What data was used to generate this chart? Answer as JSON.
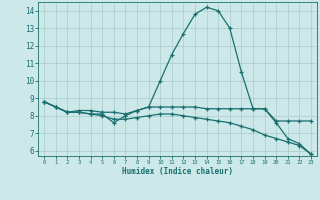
{
  "xlabel": "Humidex (Indice chaleur)",
  "bg_color": "#cce8e8",
  "line_color": "#1a7070",
  "grid_color": "#aacccc",
  "ylim": [
    5.7,
    14.5
  ],
  "xlim": [
    -0.5,
    23.5
  ],
  "yticks": [
    6,
    7,
    8,
    9,
    10,
    11,
    12,
    13,
    14
  ],
  "xticks": [
    0,
    1,
    2,
    3,
    4,
    5,
    6,
    7,
    8,
    9,
    10,
    11,
    12,
    13,
    14,
    15,
    16,
    17,
    18,
    19,
    20,
    21,
    22,
    23
  ],
  "line1_x": [
    0,
    1,
    2,
    3,
    4,
    5,
    6,
    7,
    8,
    9,
    10,
    11,
    12,
    13,
    14,
    15,
    16,
    17,
    18,
    19,
    20,
    21,
    22,
    23
  ],
  "line1_y": [
    8.8,
    8.5,
    8.2,
    8.2,
    8.1,
    8.1,
    7.6,
    8.0,
    8.3,
    8.5,
    10.0,
    11.5,
    12.7,
    13.8,
    14.2,
    14.0,
    13.0,
    10.5,
    8.4,
    8.4,
    7.6,
    6.7,
    6.4,
    5.8
  ],
  "line2_x": [
    0,
    1,
    2,
    3,
    4,
    5,
    6,
    7,
    8,
    9,
    10,
    11,
    12,
    13,
    14,
    15,
    16,
    17,
    18,
    19,
    20,
    21,
    22,
    23
  ],
  "line2_y": [
    8.8,
    8.5,
    8.2,
    8.3,
    8.3,
    8.2,
    8.2,
    8.1,
    8.3,
    8.5,
    8.5,
    8.5,
    8.5,
    8.5,
    8.4,
    8.4,
    8.4,
    8.4,
    8.4,
    8.4,
    7.7,
    7.7,
    7.7,
    7.7
  ],
  "line3_x": [
    0,
    1,
    2,
    3,
    4,
    5,
    6,
    7,
    8,
    9,
    10,
    11,
    12,
    13,
    14,
    15,
    16,
    17,
    18,
    19,
    20,
    21,
    22,
    23
  ],
  "line3_y": [
    8.8,
    8.5,
    8.2,
    8.2,
    8.1,
    8.0,
    7.8,
    7.8,
    7.9,
    8.0,
    8.1,
    8.1,
    8.0,
    7.9,
    7.8,
    7.7,
    7.6,
    7.4,
    7.2,
    6.9,
    6.7,
    6.5,
    6.3,
    5.8
  ]
}
